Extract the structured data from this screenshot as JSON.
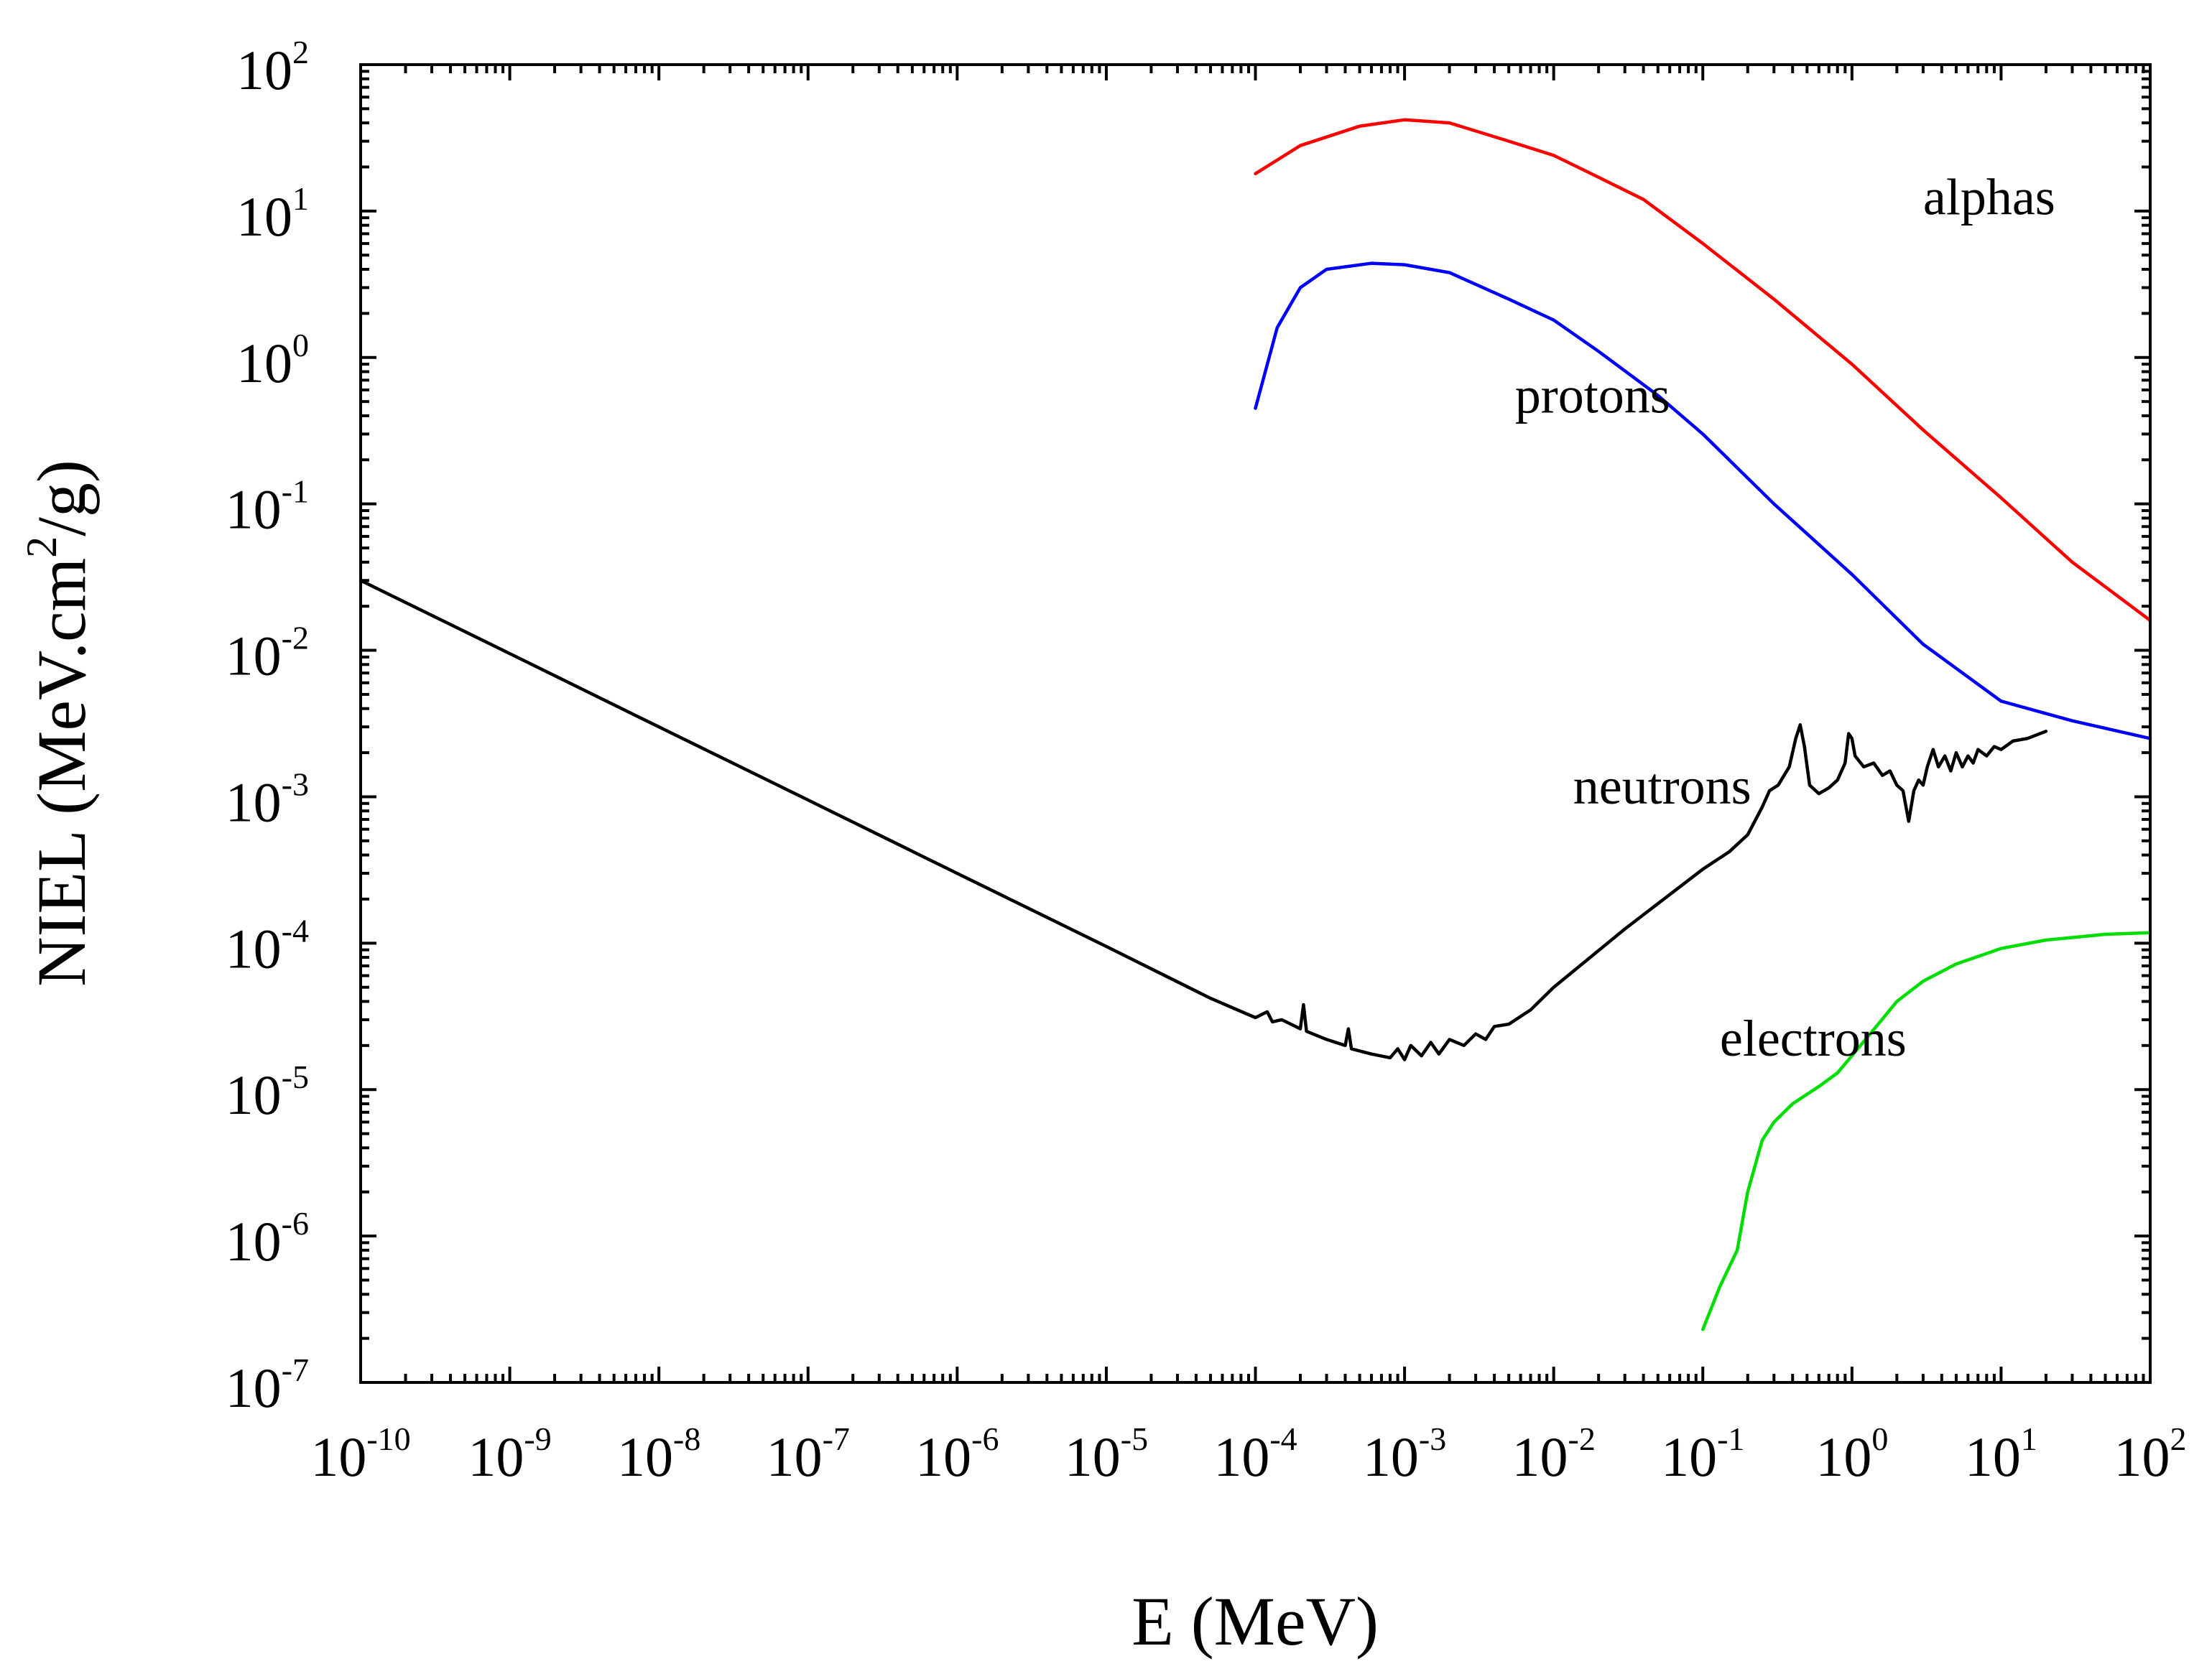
{
  "chart_data": {
    "type": "line",
    "title": "",
    "xlabel": "E (MeV)",
    "ylabel_parts": [
      "NIEL (MeV.cm",
      "2",
      "/g)"
    ],
    "x_scale": "log",
    "y_scale": "log",
    "xlim": [
      1e-10,
      100
    ],
    "ylim": [
      1e-07,
      100
    ],
    "x_ticks": [
      {
        "base": "10",
        "exp": "-10",
        "value": 1e-10
      },
      {
        "base": "10",
        "exp": "-9",
        "value": 1e-09
      },
      {
        "base": "10",
        "exp": "-8",
        "value": 1e-08
      },
      {
        "base": "10",
        "exp": "-7",
        "value": 1e-07
      },
      {
        "base": "10",
        "exp": "-6",
        "value": 1e-06
      },
      {
        "base": "10",
        "exp": "-5",
        "value": 1e-05
      },
      {
        "base": "10",
        "exp": "-4",
        "value": 0.0001
      },
      {
        "base": "10",
        "exp": "-3",
        "value": 0.001
      },
      {
        "base": "10",
        "exp": "-2",
        "value": 0.01
      },
      {
        "base": "10",
        "exp": "-1",
        "value": 0.1
      },
      {
        "base": "10",
        "exp": "0",
        "value": 1
      },
      {
        "base": "10",
        "exp": "1",
        "value": 10
      },
      {
        "base": "10",
        "exp": "2",
        "value": 100
      }
    ],
    "y_ticks": [
      {
        "base": "10",
        "exp": "2",
        "value": 100
      },
      {
        "base": "10",
        "exp": "1",
        "value": 10
      },
      {
        "base": "10",
        "exp": "0",
        "value": 1
      },
      {
        "base": "10",
        "exp": "-1",
        "value": 0.1
      },
      {
        "base": "10",
        "exp": "-2",
        "value": 0.01
      },
      {
        "base": "10",
        "exp": "-3",
        "value": 0.001
      },
      {
        "base": "10",
        "exp": "-4",
        "value": 0.0001
      },
      {
        "base": "10",
        "exp": "-5",
        "value": 1e-05
      },
      {
        "base": "10",
        "exp": "-6",
        "value": 1e-06
      },
      {
        "base": "10",
        "exp": "-7",
        "value": 1e-07
      }
    ],
    "series": [
      {
        "name": "alphas",
        "color": "#ff0000",
        "label_anchor": {
          "x": 3.0,
          "y": 9.5
        },
        "points": [
          [
            0.0001,
            18
          ],
          [
            0.0002,
            28
          ],
          [
            0.0005,
            38
          ],
          [
            0.001,
            42
          ],
          [
            0.002,
            40
          ],
          [
            0.005,
            30
          ],
          [
            0.01,
            24
          ],
          [
            0.02,
            17
          ],
          [
            0.04,
            12
          ],
          [
            0.1,
            6
          ],
          [
            0.3,
            2.5
          ],
          [
            1,
            0.9
          ],
          [
            3,
            0.32
          ],
          [
            10,
            0.11
          ],
          [
            30,
            0.04
          ],
          [
            100,
            0.016
          ]
        ]
      },
      {
        "name": "protons",
        "color": "#0000ff",
        "label_anchor": {
          "x": 0.0055,
          "y": 0.42
        },
        "points": [
          [
            0.0001,
            0.45
          ],
          [
            0.00014,
            1.6
          ],
          [
            0.0002,
            3.0
          ],
          [
            0.0003,
            4.0
          ],
          [
            0.0006,
            4.4
          ],
          [
            0.001,
            4.3
          ],
          [
            0.002,
            3.8
          ],
          [
            0.005,
            2.5
          ],
          [
            0.01,
            1.8
          ],
          [
            0.02,
            1.1
          ],
          [
            0.05,
            0.55
          ],
          [
            0.1,
            0.3
          ],
          [
            0.3,
            0.1
          ],
          [
            1,
            0.033
          ],
          [
            3,
            0.011
          ],
          [
            10,
            0.0045
          ],
          [
            30,
            0.0033
          ],
          [
            100,
            0.0025
          ]
        ]
      },
      {
        "name": "neutrons",
        "color": "#000000",
        "label_anchor": {
          "x": 0.0135,
          "y": 0.0009
        },
        "points": [
          [
            1e-10,
            0.03
          ],
          [
            1e-09,
            0.0095
          ],
          [
            1e-08,
            0.003
          ],
          [
            1e-07,
            0.00095
          ],
          [
            1e-06,
            0.0003
          ],
          [
            1e-05,
            9.5e-05
          ],
          [
            5e-05,
            4.2e-05
          ],
          [
            0.0001,
            3.1e-05
          ],
          [
            0.00012,
            3.4e-05
          ],
          [
            0.00013,
            2.9e-05
          ],
          [
            0.00015,
            3e-05
          ],
          [
            0.0002,
            2.6e-05
          ],
          [
            0.00021,
            3.8e-05
          ],
          [
            0.00022,
            2.5e-05
          ],
          [
            0.0003,
            2.2e-05
          ],
          [
            0.0004,
            2e-05
          ],
          [
            0.00042,
            2.6e-05
          ],
          [
            0.00044,
            1.9e-05
          ],
          [
            0.0006,
            1.75e-05
          ],
          [
            0.0008,
            1.65e-05
          ],
          [
            0.0009,
            1.9e-05
          ],
          [
            0.001,
            1.6e-05
          ],
          [
            0.0011,
            2e-05
          ],
          [
            0.0013,
            1.7e-05
          ],
          [
            0.0015,
            2.1e-05
          ],
          [
            0.0017,
            1.75e-05
          ],
          [
            0.002,
            2.2e-05
          ],
          [
            0.0025,
            2e-05
          ],
          [
            0.003,
            2.4e-05
          ],
          [
            0.0035,
            2.2e-05
          ],
          [
            0.004,
            2.7e-05
          ],
          [
            0.005,
            2.8e-05
          ],
          [
            0.007,
            3.5e-05
          ],
          [
            0.01,
            5e-05
          ],
          [
            0.03,
            0.000125
          ],
          [
            0.1,
            0.00032
          ],
          [
            0.15,
            0.00042
          ],
          [
            0.2,
            0.00055
          ],
          [
            0.25,
            0.00085
          ],
          [
            0.28,
            0.0011
          ],
          [
            0.32,
            0.0012
          ],
          [
            0.38,
            0.0016
          ],
          [
            0.42,
            0.0025
          ],
          [
            0.45,
            0.0031
          ],
          [
            0.48,
            0.0022
          ],
          [
            0.52,
            0.0012
          ],
          [
            0.6,
            0.00105
          ],
          [
            0.7,
            0.00115
          ],
          [
            0.8,
            0.0013
          ],
          [
            0.9,
            0.0017
          ],
          [
            0.95,
            0.0027
          ],
          [
            1.0,
            0.0025
          ],
          [
            1.05,
            0.0019
          ],
          [
            1.2,
            0.0016
          ],
          [
            1.4,
            0.0017
          ],
          [
            1.6,
            0.0014
          ],
          [
            1.8,
            0.0015
          ],
          [
            2.0,
            0.0012
          ],
          [
            2.2,
            0.0011
          ],
          [
            2.4,
            0.00068
          ],
          [
            2.6,
            0.0011
          ],
          [
            2.8,
            0.0013
          ],
          [
            3.0,
            0.0012
          ],
          [
            3.2,
            0.0016
          ],
          [
            3.5,
            0.0021
          ],
          [
            3.8,
            0.0016
          ],
          [
            4.2,
            0.0019
          ],
          [
            4.6,
            0.0015
          ],
          [
            5.0,
            0.002
          ],
          [
            5.5,
            0.0016
          ],
          [
            6.0,
            0.0019
          ],
          [
            6.5,
            0.0017
          ],
          [
            7.0,
            0.0021
          ],
          [
            8.0,
            0.0019
          ],
          [
            9.0,
            0.0022
          ],
          [
            10,
            0.0021
          ],
          [
            12,
            0.0024
          ],
          [
            15,
            0.0025
          ],
          [
            20,
            0.0028
          ]
        ]
      },
      {
        "name": "electrons",
        "color": "#00dd00",
        "label_anchor": {
          "x": 0.13,
          "y": 1.7e-05
        },
        "points": [
          [
            0.1,
            2.3e-07
          ],
          [
            0.13,
            4.5e-07
          ],
          [
            0.17,
            8e-07
          ],
          [
            0.2,
            2e-06
          ],
          [
            0.25,
            4.5e-06
          ],
          [
            0.3,
            6e-06
          ],
          [
            0.4,
            8e-06
          ],
          [
            0.6,
            1.05e-05
          ],
          [
            0.8,
            1.3e-05
          ],
          [
            1,
            1.7e-05
          ],
          [
            1.5,
            2.8e-05
          ],
          [
            2,
            4e-05
          ],
          [
            3,
            5.5e-05
          ],
          [
            5,
            7.2e-05
          ],
          [
            10,
            9.2e-05
          ],
          [
            20,
            0.000105
          ],
          [
            50,
            0.000115
          ],
          [
            100,
            0.000118
          ]
        ]
      }
    ]
  }
}
